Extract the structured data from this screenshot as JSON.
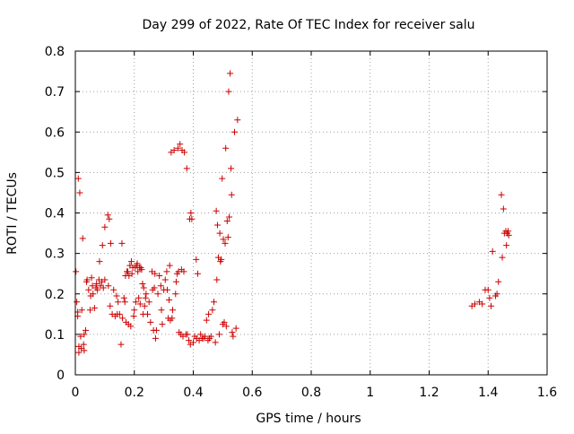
{
  "chart_data": {
    "type": "scatter",
    "title": "Day 299 of 2022, Rate Of TEC Index for receiver salu",
    "xlabel": "GPS time / hours",
    "ylabel": "ROTI / TECUs",
    "xlim": [
      0,
      1.6
    ],
    "ylim": [
      0,
      0.8
    ],
    "x_ticks": [
      0,
      0.2,
      0.4,
      0.6,
      0.8,
      1,
      1.2,
      1.4,
      1.6
    ],
    "x_tick_labels": [
      "0",
      "0.2",
      "0.4",
      "0.6",
      "0.8",
      "1",
      "1.2",
      "1.4",
      "1.6"
    ],
    "y_ticks": [
      0,
      0.1,
      0.2,
      0.3,
      0.4,
      0.5,
      0.6,
      0.7,
      0.8
    ],
    "y_tick_labels": [
      "0",
      "0.1",
      "0.2",
      "0.3",
      "0.4",
      "0.5",
      "0.6",
      "0.7",
      "0.8"
    ],
    "grid": true,
    "marker": "+",
    "color": "#cc0000",
    "series": [
      {
        "points": [
          [
            0.002,
            0.255
          ],
          [
            0.005,
            0.18
          ],
          [
            0.008,
            0.145
          ],
          [
            0.008,
            0.155
          ],
          [
            0.01,
            0.485
          ],
          [
            0.012,
            0.055
          ],
          [
            0.012,
            0.07
          ],
          [
            0.015,
            0.45
          ],
          [
            0.018,
            0.095
          ],
          [
            0.02,
            0.065
          ],
          [
            0.022,
            0.16
          ],
          [
            0.025,
            0.337
          ],
          [
            0.028,
            0.075
          ],
          [
            0.03,
            0.1
          ],
          [
            0.03,
            0.06
          ],
          [
            0.035,
            0.11
          ],
          [
            0.038,
            0.23
          ],
          [
            0.04,
            0.235
          ],
          [
            0.045,
            0.21
          ],
          [
            0.05,
            0.16
          ],
          [
            0.052,
            0.195
          ],
          [
            0.055,
            0.24
          ],
          [
            0.058,
            0.22
          ],
          [
            0.06,
            0.2
          ],
          [
            0.065,
            0.165
          ],
          [
            0.07,
            0.215
          ],
          [
            0.072,
            0.225
          ],
          [
            0.075,
            0.21
          ],
          [
            0.08,
            0.235
          ],
          [
            0.082,
            0.28
          ],
          [
            0.085,
            0.22
          ],
          [
            0.09,
            0.23
          ],
          [
            0.092,
            0.32
          ],
          [
            0.095,
            0.215
          ],
          [
            0.1,
            0.235
          ],
          [
            0.1,
            0.365
          ],
          [
            0.11,
            0.395
          ],
          [
            0.112,
            0.22
          ],
          [
            0.115,
            0.385
          ],
          [
            0.118,
            0.17
          ],
          [
            0.12,
            0.325
          ],
          [
            0.125,
            0.15
          ],
          [
            0.13,
            0.21
          ],
          [
            0.135,
            0.145
          ],
          [
            0.14,
            0.195
          ],
          [
            0.142,
            0.15
          ],
          [
            0.145,
            0.18
          ],
          [
            0.15,
            0.15
          ],
          [
            0.155,
            0.075
          ],
          [
            0.158,
            0.325
          ],
          [
            0.16,
            0.14
          ],
          [
            0.165,
            0.19
          ],
          [
            0.168,
            0.18
          ],
          [
            0.17,
            0.245
          ],
          [
            0.172,
            0.13
          ],
          [
            0.175,
            0.255
          ],
          [
            0.178,
            0.255
          ],
          [
            0.18,
            0.125
          ],
          [
            0.182,
            0.245
          ],
          [
            0.185,
            0.27
          ],
          [
            0.188,
            0.12
          ],
          [
            0.19,
            0.28
          ],
          [
            0.192,
            0.25
          ],
          [
            0.195,
            0.265
          ],
          [
            0.198,
            0.145
          ],
          [
            0.2,
            0.16
          ],
          [
            0.203,
            0.265
          ],
          [
            0.205,
            0.18
          ],
          [
            0.208,
            0.27
          ],
          [
            0.21,
            0.275
          ],
          [
            0.212,
            0.255
          ],
          [
            0.215,
            0.19
          ],
          [
            0.218,
            0.265
          ],
          [
            0.22,
            0.175
          ],
          [
            0.222,
            0.265
          ],
          [
            0.225,
            0.26
          ],
          [
            0.228,
            0.225
          ],
          [
            0.23,
            0.15
          ],
          [
            0.232,
            0.215
          ],
          [
            0.235,
            0.17
          ],
          [
            0.238,
            0.19
          ],
          [
            0.24,
            0.2
          ],
          [
            0.245,
            0.15
          ],
          [
            0.25,
            0.18
          ],
          [
            0.255,
            0.13
          ],
          [
            0.26,
            0.255
          ],
          [
            0.262,
            0.21
          ],
          [
            0.265,
            0.11
          ],
          [
            0.268,
            0.215
          ],
          [
            0.27,
            0.25
          ],
          [
            0.272,
            0.09
          ],
          [
            0.275,
            0.11
          ],
          [
            0.28,
            0.2
          ],
          [
            0.285,
            0.245
          ],
          [
            0.29,
            0.22
          ],
          [
            0.292,
            0.16
          ],
          [
            0.295,
            0.125
          ],
          [
            0.3,
            0.21
          ],
          [
            0.305,
            0.235
          ],
          [
            0.31,
            0.255
          ],
          [
            0.312,
            0.21
          ],
          [
            0.315,
            0.14
          ],
          [
            0.318,
            0.185
          ],
          [
            0.32,
            0.27
          ],
          [
            0.322,
            0.135
          ],
          [
            0.325,
            0.55
          ],
          [
            0.328,
            0.14
          ],
          [
            0.33,
            0.16
          ],
          [
            0.335,
            0.555
          ],
          [
            0.34,
            0.2
          ],
          [
            0.342,
            0.23
          ],
          [
            0.345,
            0.25
          ],
          [
            0.348,
            0.56
          ],
          [
            0.35,
            0.255
          ],
          [
            0.352,
            0.105
          ],
          [
            0.355,
            0.57
          ],
          [
            0.358,
            0.1
          ],
          [
            0.36,
            0.26
          ],
          [
            0.362,
            0.555
          ],
          [
            0.365,
            0.095
          ],
          [
            0.368,
            0.255
          ],
          [
            0.37,
            0.55
          ],
          [
            0.375,
            0.1
          ],
          [
            0.378,
            0.51
          ],
          [
            0.38,
            0.1
          ],
          [
            0.385,
            0.085
          ],
          [
            0.388,
            0.385
          ],
          [
            0.39,
            0.075
          ],
          [
            0.392,
            0.4
          ],
          [
            0.395,
            0.385
          ],
          [
            0.4,
            0.08
          ],
          [
            0.405,
            0.095
          ],
          [
            0.41,
            0.285
          ],
          [
            0.412,
            0.09
          ],
          [
            0.415,
            0.25
          ],
          [
            0.42,
            0.085
          ],
          [
            0.425,
            0.1
          ],
          [
            0.43,
            0.09
          ],
          [
            0.435,
            0.09
          ],
          [
            0.44,
            0.095
          ],
          [
            0.445,
            0.135
          ],
          [
            0.45,
            0.085
          ],
          [
            0.452,
            0.15
          ],
          [
            0.455,
            0.09
          ],
          [
            0.46,
            0.095
          ],
          [
            0.465,
            0.16
          ],
          [
            0.47,
            0.18
          ],
          [
            0.475,
            0.08
          ],
          [
            0.478,
            0.405
          ],
          [
            0.48,
            0.235
          ],
          [
            0.482,
            0.37
          ],
          [
            0.485,
            0.29
          ],
          [
            0.488,
            0.1
          ],
          [
            0.49,
            0.35
          ],
          [
            0.492,
            0.28
          ],
          [
            0.495,
            0.285
          ],
          [
            0.498,
            0.485
          ],
          [
            0.5,
            0.125
          ],
          [
            0.502,
            0.335
          ],
          [
            0.505,
            0.13
          ],
          [
            0.508,
            0.325
          ],
          [
            0.51,
            0.56
          ],
          [
            0.512,
            0.12
          ],
          [
            0.515,
            0.38
          ],
          [
            0.518,
            0.34
          ],
          [
            0.52,
            0.7
          ],
          [
            0.522,
            0.39
          ],
          [
            0.525,
            0.745
          ],
          [
            0.528,
            0.51
          ],
          [
            0.53,
            0.445
          ],
          [
            0.532,
            0.105
          ],
          [
            0.535,
            0.095
          ],
          [
            0.54,
            0.6
          ],
          [
            0.545,
            0.115
          ],
          [
            0.55,
            0.63
          ]
        ]
      },
      {
        "points": [
          [
            1.345,
            0.17
          ],
          [
            1.355,
            0.175
          ],
          [
            1.37,
            0.18
          ],
          [
            1.38,
            0.175
          ],
          [
            1.39,
            0.21
          ],
          [
            1.4,
            0.21
          ],
          [
            1.405,
            0.19
          ],
          [
            1.41,
            0.17
          ],
          [
            1.415,
            0.305
          ],
          [
            1.425,
            0.195
          ],
          [
            1.43,
            0.2
          ],
          [
            1.435,
            0.23
          ],
          [
            1.445,
            0.445
          ],
          [
            1.448,
            0.29
          ],
          [
            1.452,
            0.41
          ],
          [
            1.455,
            0.35
          ],
          [
            1.46,
            0.355
          ],
          [
            1.462,
            0.32
          ],
          [
            1.465,
            0.35
          ],
          [
            1.468,
            0.355
          ],
          [
            1.47,
            0.345
          ]
        ]
      }
    ]
  }
}
